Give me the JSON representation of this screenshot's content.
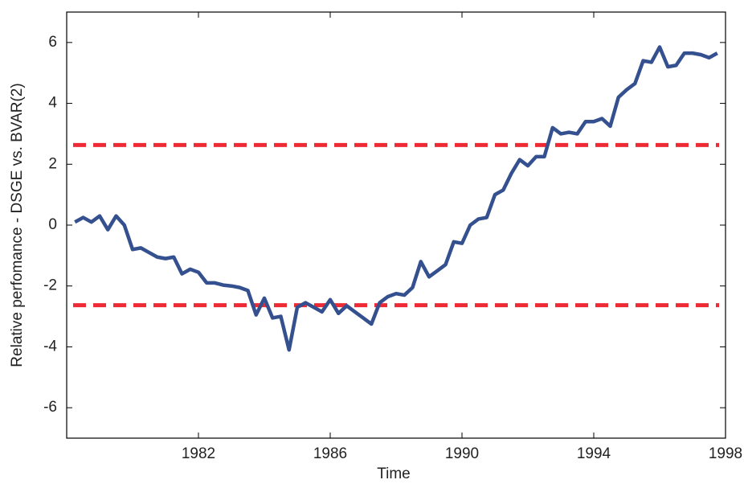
{
  "chart_data": {
    "type": "line",
    "xlabel": "Time",
    "ylabel": "Relative perfomance - DSGE vs. BVAR(2)",
    "x": [
      1978.25,
      1978.5,
      1978.75,
      1979,
      1979.25,
      1979.5,
      1979.75,
      1980,
      1980.25,
      1980.5,
      1980.75,
      1981,
      1981.25,
      1981.5,
      1981.75,
      1982,
      1982.25,
      1982.5,
      1982.75,
      1983,
      1983.25,
      1983.5,
      1983.75,
      1984,
      1984.25,
      1984.5,
      1984.75,
      1985,
      1985.25,
      1985.5,
      1985.75,
      1986,
      1986.25,
      1986.5,
      1986.75,
      1987,
      1987.25,
      1987.5,
      1987.75,
      1988,
      1988.25,
      1988.5,
      1988.75,
      1989,
      1989.25,
      1989.5,
      1989.75,
      1990,
      1990.25,
      1990.5,
      1990.75,
      1991,
      1991.25,
      1991.5,
      1991.75,
      1992,
      1992.25,
      1992.5,
      1992.75,
      1993,
      1993.25,
      1993.5,
      1993.75,
      1994,
      1994.25,
      1994.5,
      1994.75,
      1995,
      1995.25,
      1995.5,
      1995.75,
      1996,
      1996.25,
      1996.5,
      1996.75,
      1997,
      1997.25,
      1997.5,
      1997.75
    ],
    "series": [
      {
        "color": "#34508f",
        "values": [
          0.1,
          0.25,
          0.1,
          0.3,
          -0.15,
          0.3,
          0.0,
          -0.8,
          -0.75,
          -0.9,
          -1.05,
          -1.1,
          -1.05,
          -1.6,
          -1.45,
          -1.55,
          -1.9,
          -1.9,
          -1.97,
          -2.0,
          -2.05,
          -2.15,
          -2.95,
          -2.4,
          -3.05,
          -3.0,
          -4.1,
          -2.7,
          -2.55,
          -2.7,
          -2.85,
          -2.45,
          -2.9,
          -2.65,
          -2.85,
          -3.05,
          -3.25,
          -2.55,
          -2.35,
          -2.25,
          -2.3,
          -2.05,
          -1.2,
          -1.7,
          -1.5,
          -1.3,
          -0.55,
          -0.6,
          0.0,
          0.2,
          0.25,
          1.0,
          1.15,
          1.7,
          2.15,
          1.95,
          2.25,
          2.25,
          3.2,
          3.0,
          3.05,
          3.0,
          3.4,
          3.4,
          3.5,
          3.25,
          4.2,
          4.45,
          4.65,
          5.4,
          5.35,
          5.85,
          5.2,
          5.25,
          5.65,
          5.65,
          5.6,
          5.5,
          5.65
        ]
      }
    ],
    "reference_lines": [
      2.63,
      -2.63
    ],
    "reference_color": "#ee2b35",
    "xlim": [
      1978,
      1998
    ],
    "xticks": [
      1982,
      1986,
      1990,
      1994,
      1998
    ],
    "ylim": [
      -7,
      7
    ],
    "yticks": [
      -6,
      -4,
      -2,
      0,
      2,
      4,
      6
    ],
    "grid": false
  }
}
